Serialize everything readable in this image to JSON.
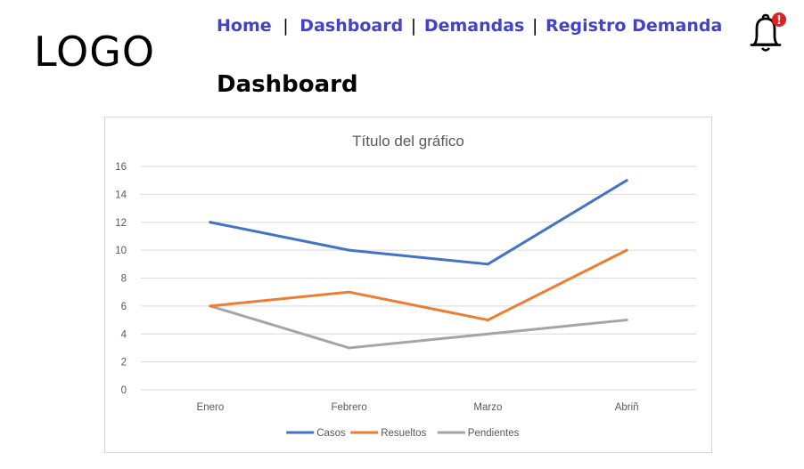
{
  "logo": {
    "text": "LOGO"
  },
  "nav": {
    "items": [
      {
        "label": "Home"
      },
      {
        "label": "Dashboard"
      },
      {
        "label": "Demandas"
      },
      {
        "label": "Registro Demanda"
      }
    ],
    "separator": "|"
  },
  "notifications": {
    "icon": "bell-icon",
    "badge_icon": "alert-badge-icon",
    "badge_text": "!",
    "badge_color": "#e02020"
  },
  "page": {
    "title": "Dashboard"
  },
  "chart_data": {
    "type": "line",
    "title": "Título del gráfico",
    "categories": [
      "Enero",
      "Febrero",
      "Marzo",
      "Abriñ"
    ],
    "series": [
      {
        "name": "Casos",
        "values": [
          12,
          10,
          9,
          15
        ],
        "color": "#4472c4"
      },
      {
        "name": "Resueltos",
        "values": [
          6,
          7,
          5,
          10
        ],
        "color": "#ed7d31"
      },
      {
        "name": "Pendientes",
        "values": [
          6,
          3,
          4,
          5
        ],
        "color": "#a5a5a5"
      }
    ],
    "xlabel": "",
    "ylabel": "",
    "ylim": [
      0,
      16
    ],
    "yticks": [
      0,
      2,
      4,
      6,
      8,
      10,
      12,
      14,
      16
    ],
    "grid": true,
    "legend": "bottom"
  }
}
